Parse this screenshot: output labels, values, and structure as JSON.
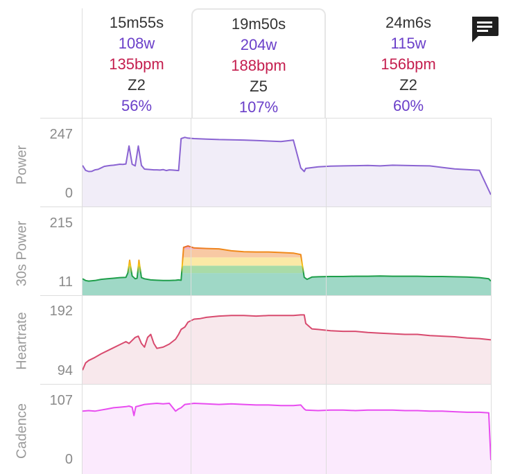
{
  "segments": [
    {
      "duration": "15m55s",
      "power": "108w",
      "heartrate": "135bpm",
      "zone": "Z2",
      "percent": "56%",
      "selected": false
    },
    {
      "duration": "19m50s",
      "power": "204w",
      "heartrate": "188bpm",
      "zone": "Z5",
      "percent": "107%",
      "selected": true
    },
    {
      "duration": "24m6s",
      "power": "115w",
      "heartrate": "156bpm",
      "zone": "Z2",
      "percent": "60%",
      "selected": false
    }
  ],
  "icons": {
    "comment": "comment-icon"
  },
  "colors": {
    "power_line": "#8a63d2",
    "power_fill": "#f1edf8",
    "zone_green": "#1e9e4a",
    "zone_yellow": "#f5c518",
    "zone_orange": "#f08a1a",
    "zone_red": "#d81b4a",
    "hr_line": "#d84a6e",
    "hr_fill": "#f8e8ec",
    "cad_line": "#e84cf0",
    "cad_fill": "#fbeafd"
  },
  "chart_data": [
    {
      "type": "area",
      "ylabel": "Power",
      "ylim": [
        0,
        247
      ],
      "ticks": [
        "247",
        "0"
      ],
      "x": [
        0,
        0.5,
        1,
        1.5,
        2,
        2.5,
        3,
        3.5,
        4,
        4.5,
        5,
        5.5,
        6,
        6.5,
        7,
        7.5,
        8,
        8.5,
        9,
        9.5,
        10,
        10.5,
        11,
        11.5,
        12,
        12.5,
        13,
        13.5,
        14,
        14.5,
        15,
        15.5,
        15.9,
        16.5,
        17,
        18,
        20,
        22,
        24,
        26,
        28,
        30,
        32,
        34,
        35.2,
        35.75,
        36,
        38,
        40,
        42,
        44,
        46,
        48,
        50,
        52,
        54,
        56,
        58,
        60,
        62,
        64,
        65.85
      ],
      "values": [
        120,
        100,
        95,
        96,
        102,
        104,
        110,
        116,
        118,
        120,
        121,
        123,
        125,
        124,
        126,
        200,
        125,
        118,
        200,
        120,
        105,
        104,
        103,
        102,
        102,
        101,
        103,
        99,
        102,
        101,
        100,
        99,
        230,
        235,
        232,
        230,
        228,
        226,
        225,
        224,
        222,
        220,
        218,
        224,
        110,
        95,
        108,
        114,
        117,
        118,
        119,
        120,
        118,
        121,
        120,
        119,
        118,
        112,
        106,
        103,
        100,
        0
      ]
    },
    {
      "type": "area",
      "ylabel": "30s Power",
      "ylim": [
        11,
        215
      ],
      "ticks": [
        "215",
        "11"
      ],
      "zones_y": [
        11,
        40,
        66,
        95,
        123,
        215
      ],
      "x": [
        0,
        0.5,
        1,
        2,
        3,
        4,
        5,
        6,
        7,
        7.3,
        7.6,
        8,
        8.5,
        8.8,
        9.1,
        9.5,
        10,
        11,
        12,
        13,
        14,
        15,
        15.5,
        15.9,
        16.3,
        17,
        18,
        20,
        22,
        24,
        26,
        28,
        30,
        32,
        34,
        35.2,
        35.75,
        36.2,
        37,
        38,
        40,
        42,
        44,
        46,
        48,
        50,
        52,
        54,
        56,
        58,
        60,
        62,
        64,
        65.5,
        65.85
      ],
      "values": [
        20,
        14,
        12,
        14,
        18,
        20,
        22,
        24,
        25,
        40,
        85,
        30,
        20,
        22,
        85,
        24,
        20,
        16,
        15,
        14,
        14,
        15,
        16,
        15,
        130,
        135,
        128,
        126,
        125,
        118,
        115,
        114,
        114,
        112,
        110,
        105,
        25,
        18,
        26,
        27,
        28,
        28,
        29,
        29,
        30,
        29,
        29,
        29,
        28,
        28,
        27,
        26,
        24,
        20,
        12
      ]
    },
    {
      "type": "area",
      "ylabel": "Heartrate",
      "ylim": [
        94,
        192
      ],
      "ticks": [
        "192",
        "94"
      ],
      "x": [
        0,
        0.5,
        1,
        2,
        3,
        4,
        5,
        6,
        7,
        7.5,
        8,
        8.5,
        9,
        9.5,
        10,
        10.5,
        11,
        11.5,
        12,
        13,
        14,
        15,
        15.5,
        15.9,
        16.5,
        17,
        18,
        19,
        20,
        22,
        24,
        26,
        28,
        30,
        32,
        34,
        35.2,
        35.75,
        36,
        37,
        38,
        40,
        42,
        44,
        46,
        48,
        50,
        52,
        54,
        56,
        58,
        60,
        62,
        64,
        65.85
      ],
      "values": [
        96,
        108,
        112,
        117,
        123,
        128,
        133,
        138,
        143,
        140,
        145,
        150,
        152,
        140,
        134,
        150,
        155,
        140,
        132,
        134,
        139,
        147,
        155,
        163,
        167,
        175,
        180,
        181,
        183,
        185,
        186,
        186,
        185,
        186,
        186,
        186,
        187,
        187,
        173,
        164,
        163,
        161,
        160,
        160,
        158,
        157,
        156,
        155,
        155,
        153,
        152,
        151,
        149,
        148,
        146
      ]
    },
    {
      "type": "area",
      "ylabel": "Cadence",
      "ylim": [
        0,
        107
      ],
      "ticks": [
        "107",
        "0"
      ],
      "x": [
        0,
        1,
        2,
        3,
        4,
        5,
        6,
        7,
        7.5,
        8,
        8.3,
        8.6,
        9,
        10,
        11,
        12,
        13,
        14,
        15,
        15.5,
        15.9,
        16.5,
        18,
        20,
        22,
        24,
        26,
        28,
        30,
        32,
        34,
        35.2,
        35.75,
        36,
        38,
        40,
        42,
        44,
        46,
        48,
        50,
        52,
        54,
        56,
        58,
        60,
        62,
        64,
        65.5,
        65.85
      ],
      "values": [
        88,
        89,
        88,
        90,
        92,
        94,
        95,
        96,
        97,
        95,
        80,
        96,
        97,
        100,
        101,
        102,
        101,
        102,
        88,
        92,
        94,
        100,
        102,
        101,
        100,
        101,
        100,
        99,
        99,
        98,
        98,
        99,
        92,
        90,
        89,
        90,
        90,
        89,
        90,
        90,
        90,
        89,
        89,
        88,
        88,
        87,
        86,
        86,
        85,
        0
      ]
    }
  ]
}
